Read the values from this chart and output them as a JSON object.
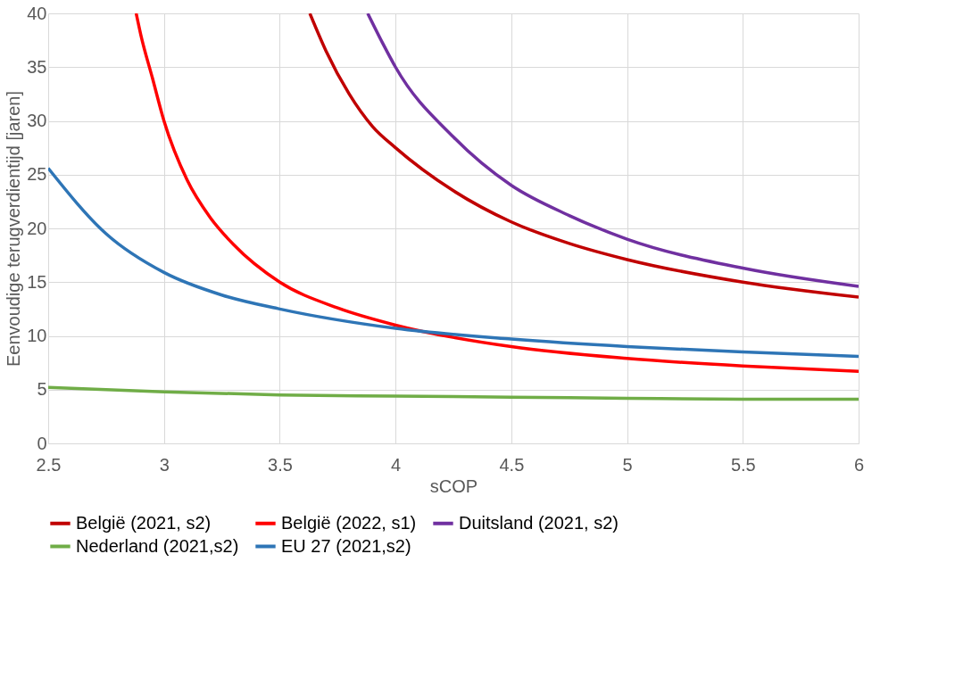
{
  "chart_data": {
    "type": "line",
    "xlabel": "sCOP",
    "ylabel": "Eenvoudige terugverdientijd [jaren]",
    "xlim": [
      2.5,
      6
    ],
    "xticks": [
      2.5,
      3,
      3.5,
      4,
      4.5,
      5,
      5.5,
      6
    ],
    "ylim": [
      0,
      40
    ],
    "yticks": [
      0,
      5,
      10,
      15,
      20,
      25,
      30,
      35,
      40
    ],
    "grid": true,
    "legend": "bottom",
    "marker": "none",
    "line_style": "solid",
    "series": [
      {
        "name": "België (2021, s2)",
        "color": "#c00000",
        "x": [
          3.63,
          3.7,
          3.8,
          3.9,
          4,
          4.25,
          4.5,
          4.75,
          5,
          5.5,
          6
        ],
        "values": [
          40,
          36.5,
          32.5,
          29.5,
          27.5,
          23.5,
          20.6,
          18.6,
          17.1,
          15,
          13.6
        ]
      },
      {
        "name": "België (2022, s1)",
        "color": "#ff0000",
        "x": [
          2.88,
          2.9,
          2.95,
          3,
          3.1,
          3.2,
          3.3,
          3.5,
          3.75,
          4,
          4.5,
          5,
          5.5,
          6
        ],
        "values": [
          40,
          38,
          34,
          30,
          24.5,
          21,
          18.5,
          15,
          12.6,
          11,
          9,
          7.9,
          7.2,
          6.7
        ]
      },
      {
        "name": "Duitsland (2021, s2)",
        "color": "#7030a0",
        "x": [
          3.88,
          3.95,
          4,
          4.25,
          4.5,
          4.75,
          5,
          5.5,
          6
        ],
        "values": [
          40,
          37,
          35,
          28.5,
          24,
          21.2,
          19,
          16.3,
          14.6
        ]
      },
      {
        "name": "Nederland (2021,s2)",
        "color": "#70ad47",
        "x": [
          2.5,
          3,
          3.5,
          4,
          4.5,
          5,
          5.5,
          6
        ],
        "values": [
          5.2,
          4.8,
          4.5,
          4.4,
          4.3,
          4.2,
          4.1,
          4.1
        ]
      },
      {
        "name": "EU 27 (2021,s2)",
        "color": "#2e75b6",
        "x": [
          2.5,
          2.75,
          3,
          3.25,
          3.5,
          4,
          4.5,
          5,
          5.5,
          6
        ],
        "values": [
          25.6,
          19.5,
          15.9,
          13.8,
          12.5,
          10.7,
          9.7,
          9.0,
          8.5,
          8.1
        ]
      }
    ]
  }
}
